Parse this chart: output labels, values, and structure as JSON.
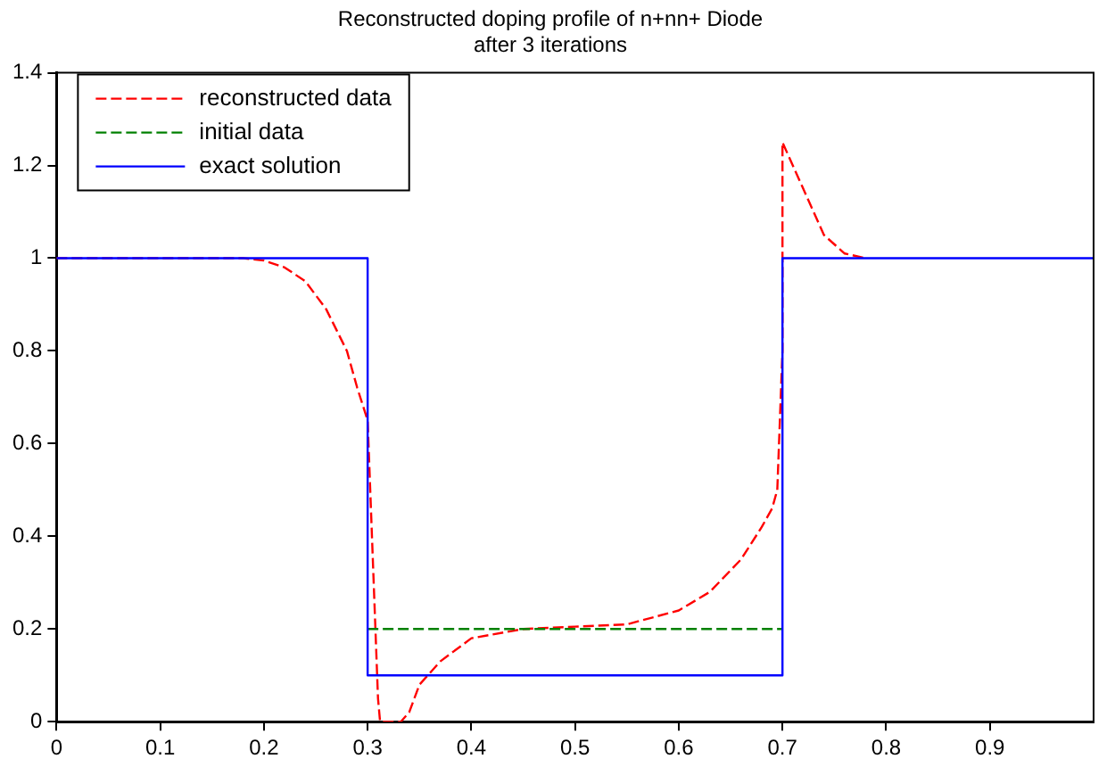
{
  "chart_data": {
    "type": "line",
    "title": "Reconstructed doping profile of n+nn+ Diode",
    "subtitle": "after 3 iterations",
    "xlim": [
      0,
      1
    ],
    "ylim": [
      0,
      1.4
    ],
    "xticks": [
      0,
      0.1,
      0.2,
      0.3,
      0.4,
      0.5,
      0.6,
      0.7,
      0.8,
      0.9
    ],
    "yticks": [
      0,
      0.2,
      0.4,
      0.6,
      0.8,
      1,
      1.2,
      1.4
    ],
    "grid": false,
    "legend": "top left",
    "marker": "none",
    "series": [
      {
        "name": "reconstructed data",
        "color": "#ff0000",
        "line_style": "dashed",
        "x": [
          0,
          0.18,
          0.2,
          0.22,
          0.24,
          0.26,
          0.28,
          0.29,
          0.3,
          0.305,
          0.31,
          0.312,
          0.332,
          0.34,
          0.35,
          0.37,
          0.4,
          0.45,
          0.5,
          0.55,
          0.6,
          0.63,
          0.66,
          0.68,
          0.69,
          0.695,
          0.7,
          0.7,
          0.72,
          0.74,
          0.76,
          0.78
        ],
        "values": [
          1,
          1,
          0.995,
          0.98,
          0.95,
          0.89,
          0.8,
          0.72,
          0.65,
          0.35,
          0.05,
          0,
          0,
          0.02,
          0.08,
          0.13,
          0.18,
          0.2,
          0.205,
          0.21,
          0.24,
          0.28,
          0.35,
          0.42,
          0.46,
          0.5,
          0.8,
          1.25,
          1.15,
          1.05,
          1.01,
          1
        ]
      },
      {
        "name": "initial data",
        "color": "#008000",
        "line_style": "dashed",
        "x": [
          0.3,
          0.7
        ],
        "values": [
          0.2,
          0.2
        ]
      },
      {
        "name": "exact solution",
        "color": "#0000ff",
        "line_style": "solid",
        "x": [
          0,
          0.3,
          0.3,
          0.7,
          0.7,
          1
        ],
        "values": [
          1,
          1,
          0.1,
          0.1,
          1,
          1
        ]
      }
    ]
  }
}
